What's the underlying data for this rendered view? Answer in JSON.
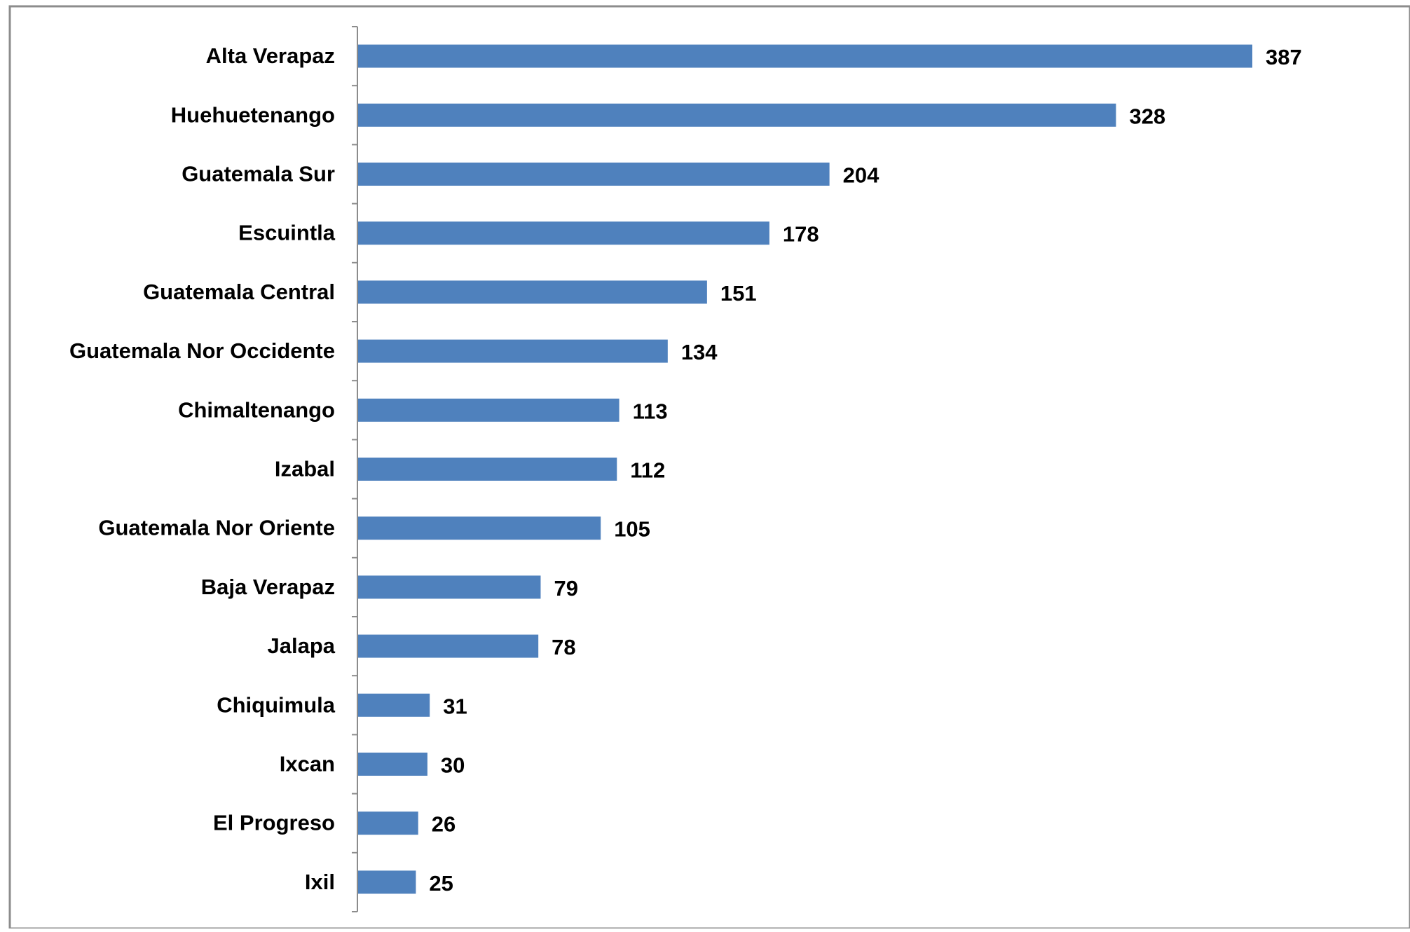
{
  "chart_data": {
    "type": "bar",
    "orientation": "horizontal",
    "title": "",
    "xlabel": "",
    "ylabel": "",
    "categories": [
      "Alta Verapaz",
      "Huehuetenango",
      "Guatemala Sur",
      "Escuintla",
      "Guatemala Central",
      "Guatemala Nor Occidente",
      "Chimaltenango",
      "Izabal",
      "Guatemala Nor Oriente",
      "Baja Verapaz",
      "Jalapa",
      "Chiquimula",
      "Ixcan",
      "El Progreso",
      "Ixil"
    ],
    "values": [
      387,
      328,
      204,
      178,
      151,
      134,
      113,
      112,
      105,
      79,
      78,
      31,
      30,
      26,
      25
    ],
    "xlim": [
      0,
      387
    ],
    "grid": false,
    "legend": "none",
    "data_labels": true,
    "bar_color": "#4F81BD"
  }
}
